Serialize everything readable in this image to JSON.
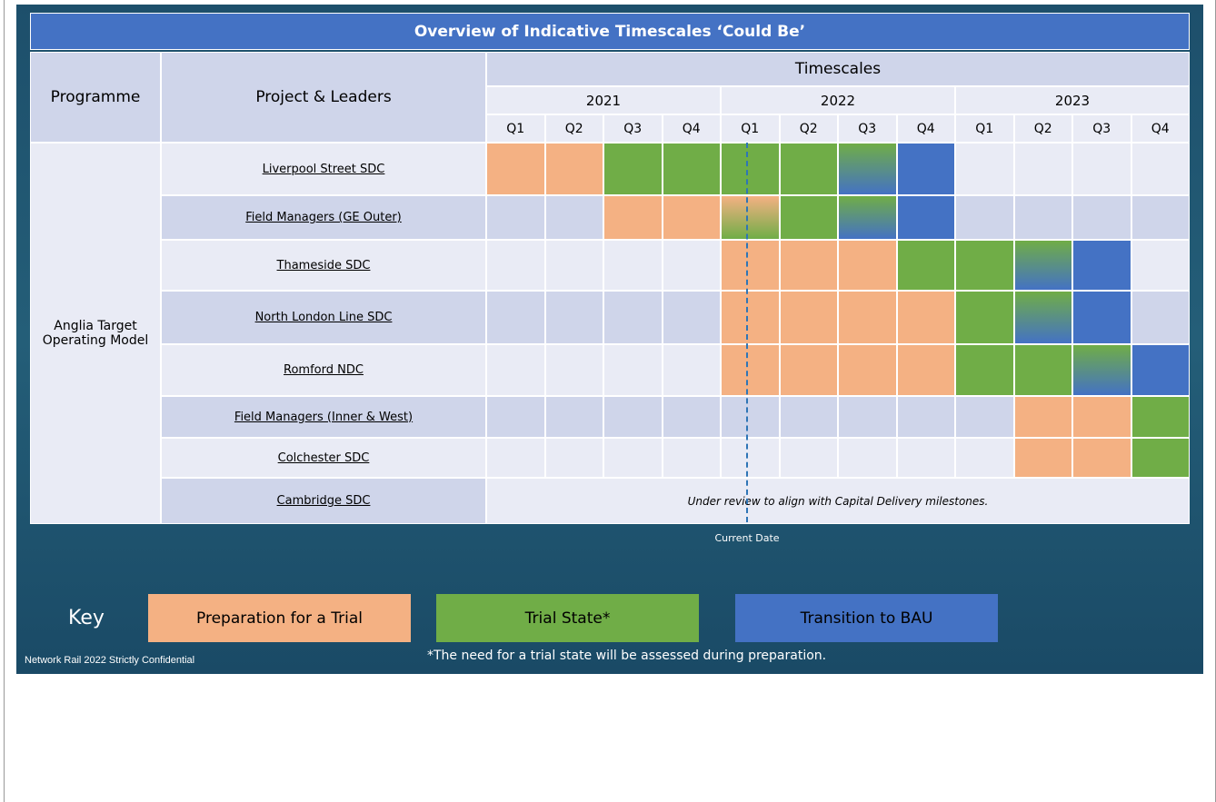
{
  "title": "Overview of Indicative Timescales ‘Could Be’",
  "headers": {
    "programme": "Programme",
    "project": "Project & Leaders",
    "timescales": "Timescales"
  },
  "years": [
    "2021",
    "2022",
    "2023"
  ],
  "quarters": [
    "Q1",
    "Q2",
    "Q3",
    "Q4",
    "Q1",
    "Q2",
    "Q3",
    "Q4",
    "Q1",
    "Q2",
    "Q3",
    "Q4"
  ],
  "programme": "Anglia Target Operating Model",
  "rows": [
    {
      "project": "Liverpool Street SDC",
      "cells": [
        0,
        0,
        1,
        1,
        1,
        1,
        [
          1,
          2
        ],
        2,
        null,
        null,
        null,
        null
      ]
    },
    {
      "project": "Field Managers (GE Outer)",
      "cells": [
        null,
        null,
        0,
        0,
        [
          0,
          1
        ],
        1,
        [
          1,
          2
        ],
        2,
        null,
        null,
        null,
        null
      ]
    },
    {
      "project": "Thameside SDC",
      "cells": [
        null,
        null,
        null,
        null,
        0,
        0,
        0,
        1,
        1,
        [
          1,
          2
        ],
        2,
        null
      ]
    },
    {
      "project": "North London Line SDC",
      "cells": [
        null,
        null,
        null,
        null,
        0,
        0,
        0,
        0,
        1,
        [
          1,
          2
        ],
        2,
        null
      ]
    },
    {
      "project": "Romford NDC",
      "cells": [
        null,
        null,
        null,
        null,
        0,
        0,
        0,
        0,
        1,
        1,
        [
          1,
          2
        ],
        2
      ]
    },
    {
      "project": "Field Managers (Inner & West)",
      "cells": [
        null,
        null,
        null,
        null,
        null,
        null,
        null,
        null,
        null,
        0,
        0,
        1
      ]
    },
    {
      "project": "Colchester SDC",
      "cells": [
        null,
        null,
        null,
        null,
        null,
        null,
        null,
        null,
        null,
        0,
        0,
        1
      ]
    },
    {
      "project": "Cambridge SDC",
      "note": "Under review to align with Capital Delivery milestones."
    }
  ],
  "current_date": "Current Date",
  "key": {
    "label": "Key",
    "items": [
      {
        "label": "Preparation for a Trial",
        "color": "#f4b183"
      },
      {
        "label": "Trial State*",
        "color": "#70ad47"
      },
      {
        "label": "Transition to BAU",
        "color": "#4472c4"
      }
    ]
  },
  "footnote": "*The need for a trial state will be assessed during preparation.",
  "footer": "Network Rail 2022 Strictly Confidential"
}
